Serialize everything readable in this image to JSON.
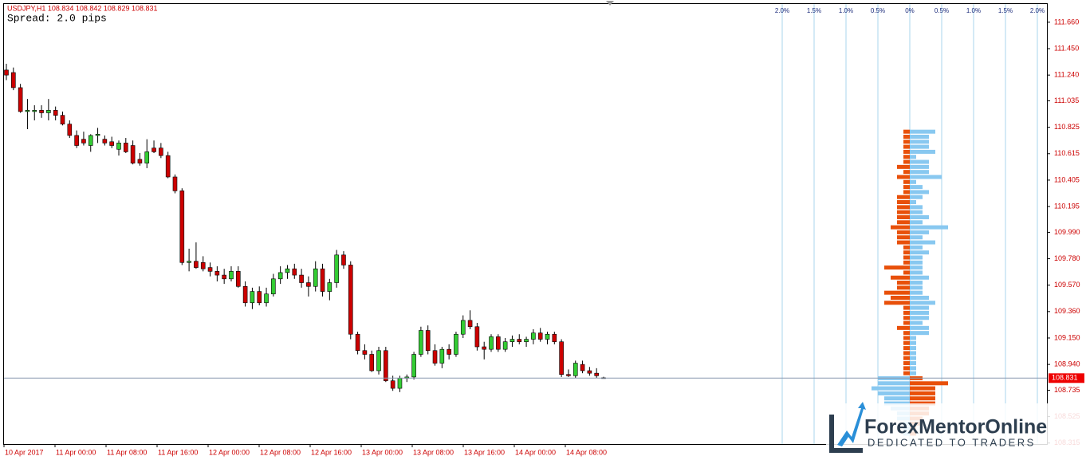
{
  "chart_data": [
    {
      "type": "candlestick",
      "title": "USDJPY,H1  108.834 108.842 108.829 108.831",
      "subtitle": "Spread: 2.0 pips",
      "open": [
        111.28,
        111.26,
        111.14,
        110.95,
        110.95,
        110.96,
        110.94,
        110.96,
        110.92,
        110.85,
        110.76,
        110.73,
        110.68,
        110.76,
        110.73,
        110.71,
        110.65,
        110.7,
        110.68,
        110.57,
        110.54,
        110.66,
        110.66,
        110.6,
        110.43,
        110.32,
        109.75,
        109.76,
        109.75,
        109.71,
        109.68,
        109.65,
        109.62,
        109.68,
        109.56,
        109.43,
        109.52,
        109.43,
        109.5,
        109.62,
        109.67,
        109.7,
        109.65,
        109.59,
        109.56,
        109.7,
        109.52,
        109.59,
        109.81,
        109.73,
        109.18,
        109.05,
        109.02,
        108.89,
        109.05,
        108.81,
        108.75,
        108.83,
        108.84,
        109.02,
        109.21,
        109.05,
        108.95,
        109.06,
        109.02,
        109.18,
        109.29,
        109.24,
        109.08,
        109.06,
        109.16,
        109.06,
        109.12,
        109.14,
        109.12,
        109.14,
        109.19,
        109.14,
        109.18,
        109.12,
        108.86,
        108.85,
        108.94,
        108.89,
        108.87,
        108.834
      ],
      "high": [
        111.33,
        111.3,
        111.17,
        111.05,
        111.0,
        111.0,
        111.05,
        110.99,
        110.95,
        110.88,
        110.8,
        110.79,
        110.77,
        110.82,
        110.76,
        110.75,
        110.72,
        110.74,
        110.72,
        110.62,
        110.73,
        110.72,
        110.7,
        110.63,
        110.45,
        110.34,
        109.86,
        109.91,
        109.8,
        109.75,
        109.72,
        109.7,
        109.72,
        109.72,
        109.6,
        109.55,
        109.56,
        109.55,
        109.66,
        109.72,
        109.73,
        109.74,
        109.7,
        109.64,
        109.76,
        109.74,
        109.62,
        109.85,
        109.84,
        109.76,
        109.2,
        109.1,
        109.05,
        109.08,
        109.08,
        108.85,
        108.85,
        108.86,
        109.04,
        109.24,
        109.25,
        109.1,
        109.08,
        109.1,
        109.2,
        109.33,
        109.37,
        109.27,
        109.12,
        109.18,
        109.18,
        109.15,
        109.17,
        109.18,
        109.16,
        109.22,
        109.23,
        109.2,
        109.2,
        109.14,
        108.9,
        108.97,
        108.97,
        108.92,
        108.91,
        108.842
      ],
      "low": [
        111.2,
        111.12,
        110.94,
        110.81,
        110.88,
        110.9,
        110.88,
        110.88,
        110.84,
        110.74,
        110.66,
        110.68,
        110.63,
        110.7,
        110.68,
        110.66,
        110.6,
        110.62,
        110.53,
        110.52,
        110.5,
        110.62,
        110.58,
        110.42,
        110.3,
        109.73,
        109.68,
        109.7,
        109.68,
        109.64,
        109.6,
        109.58,
        109.6,
        109.55,
        109.4,
        109.38,
        109.41,
        109.4,
        109.48,
        109.58,
        109.62,
        109.62,
        109.55,
        109.48,
        109.52,
        109.48,
        109.45,
        109.55,
        109.7,
        109.14,
        109.02,
        108.98,
        108.88,
        108.86,
        108.8,
        108.73,
        108.72,
        108.8,
        108.82,
        109.0,
        109.02,
        108.93,
        108.91,
        108.98,
        109.0,
        109.15,
        109.22,
        109.05,
        108.98,
        109.04,
        109.04,
        109.04,
        109.08,
        109.1,
        109.08,
        109.1,
        109.12,
        109.1,
        109.1,
        108.84,
        108.84,
        108.83,
        108.87,
        108.85,
        108.83,
        108.829
      ],
      "close": [
        111.24,
        111.14,
        110.95,
        110.96,
        110.96,
        110.94,
        110.96,
        110.92,
        110.85,
        110.76,
        110.68,
        110.7,
        110.76,
        110.77,
        110.7,
        110.68,
        110.7,
        110.63,
        110.54,
        110.54,
        110.63,
        110.63,
        110.6,
        110.43,
        110.32,
        109.75,
        109.76,
        109.71,
        109.7,
        109.68,
        109.65,
        109.62,
        109.68,
        109.56,
        109.43,
        109.52,
        109.43,
        109.5,
        109.62,
        109.67,
        109.7,
        109.65,
        109.59,
        109.56,
        109.7,
        109.52,
        109.59,
        109.81,
        109.73,
        109.18,
        109.05,
        109.02,
        108.89,
        109.05,
        108.81,
        108.75,
        108.83,
        108.84,
        109.02,
        109.21,
        109.05,
        108.95,
        109.06,
        109.02,
        109.18,
        109.29,
        109.24,
        109.08,
        109.06,
        109.16,
        109.06,
        109.12,
        109.14,
        109.12,
        109.14,
        109.19,
        109.14,
        109.18,
        109.12,
        108.86,
        108.85,
        108.95,
        108.89,
        108.87,
        108.85,
        108.831
      ],
      "up_color": "#33cc33",
      "down_color": "#cc0000",
      "x_labels": [
        "10 Apr 2017",
        "11 Apr 00:00",
        "11 Apr 08:00",
        "11 Apr 16:00",
        "12 Apr 00:00",
        "12 Apr 08:00",
        "12 Apr 16:00",
        "13 Apr 00:00",
        "13 Apr 08:00",
        "13 Apr 16:00",
        "14 Apr 00:00",
        "14 Apr 08:00"
      ],
      "ylim": [
        108.307,
        111.805
      ],
      "yticks": [
        {
          "value": 111.66,
          "label": "111.660"
        },
        {
          "value": 111.45,
          "label": "111.450"
        },
        {
          "value": 111.24,
          "label": "111.240"
        },
        111.035,
        110.825,
        110.615,
        110.405,
        110.195,
        {
          "value": 109.99,
          "label": "109.990"
        },
        {
          "value": 109.78,
          "label": "109.780"
        },
        {
          "value": 109.57,
          "label": "109.570"
        },
        {
          "value": 109.36,
          "label": "109.360"
        },
        {
          "value": 109.15,
          "label": "109.150"
        },
        {
          "value": 108.94,
          "label": "108.940"
        },
        108.735,
        108.525,
        108.315
      ]
    },
    {
      "type": "bar",
      "categories": [
        110.79,
        110.75,
        110.71,
        110.67,
        110.63,
        110.59,
        110.55,
        110.51,
        110.47,
        110.43,
        110.39,
        110.35,
        110.31,
        110.27,
        110.23,
        110.19,
        110.15,
        110.11,
        110.07,
        110.03,
        109.99,
        109.95,
        109.91,
        109.87,
        109.83,
        109.79,
        109.75,
        109.71,
        109.67,
        109.63,
        109.59,
        109.55,
        109.51,
        109.47,
        109.43,
        109.39,
        109.35,
        109.31,
        109.27,
        109.23,
        109.19,
        109.15,
        109.11,
        109.07,
        109.03,
        108.99,
        108.95,
        108.91,
        108.87,
        108.83,
        108.79,
        108.75,
        108.71,
        108.67,
        108.63,
        108.59,
        108.55,
        108.51,
        108.47,
        108.43,
        108.39
      ],
      "series": [
        {
          "color": "#e8500a",
          "values": [
            -0.1,
            -0.1,
            -0.1,
            -0.1,
            -0.1,
            -0.1,
            -0.1,
            -0.2,
            -0.1,
            -0.2,
            -0.1,
            -0.1,
            -0.1,
            -0.2,
            -0.2,
            -0.2,
            -0.2,
            -0.2,
            -0.2,
            -0.3,
            -0.2,
            -0.2,
            -0.2,
            -0.1,
            -0.1,
            -0.1,
            -0.1,
            -0.4,
            -0.1,
            -0.3,
            -0.2,
            -0.2,
            -0.4,
            -0.3,
            -0.4,
            -0.1,
            -0.1,
            -0.1,
            -0.1,
            -0.2,
            -0.1,
            -0.1,
            -0.1,
            -0.1,
            -0.1,
            -0.1,
            -0.1,
            -0.1,
            -0.1,
            0.2,
            0.6,
            0.4,
            0.4,
            0.4,
            0.4,
            0.3,
            0.3,
            0.2,
            0.2,
            0.1,
            0.1
          ]
        },
        {
          "color": "#88c8f0",
          "values": [
            0.4,
            0.3,
            0.3,
            0.3,
            0.4,
            0.1,
            0.3,
            0.3,
            0.3,
            0.5,
            0.1,
            0.2,
            0.3,
            0.2,
            0.1,
            0.2,
            0.2,
            0.3,
            0.2,
            0.6,
            0.3,
            0.2,
            0.4,
            0.2,
            0.3,
            0.2,
            0.2,
            0.2,
            0.2,
            0.3,
            0.2,
            0.2,
            0.2,
            0.3,
            0.4,
            0.3,
            0.3,
            0.3,
            0.2,
            0.3,
            0.3,
            0.1,
            0.1,
            0.1,
            0.1,
            0.1,
            0.1,
            0.1,
            0.1,
            -0.5,
            -0.5,
            -0.6,
            -0.5,
            -0.4,
            -0.4,
            -0.3,
            -0.2,
            -0.2,
            -0.1,
            -0.1,
            -0.1
          ]
        }
      ],
      "xlim": [
        -2.0,
        2.0
      ],
      "xticks": [
        {
          "value": -2.0,
          "label": "2.0%"
        },
        {
          "value": -1.5,
          "label": "1.5%"
        },
        {
          "value": -1.0,
          "label": "1.0%"
        },
        {
          "value": -0.5,
          "label": "0.5%"
        },
        {
          "value": 0,
          "label": "0%"
        },
        {
          "value": 0.5,
          "label": "0.5%"
        },
        {
          "value": 1.0,
          "label": "1.0%"
        },
        {
          "value": 1.5,
          "label": "1.5%"
        },
        {
          "value": 2.0,
          "label": "2.0%"
        }
      ],
      "grid": true
    }
  ],
  "logo": {
    "brand": "ForexMentorOnline",
    "tagline": "DEDICATED TO TRADERS"
  }
}
